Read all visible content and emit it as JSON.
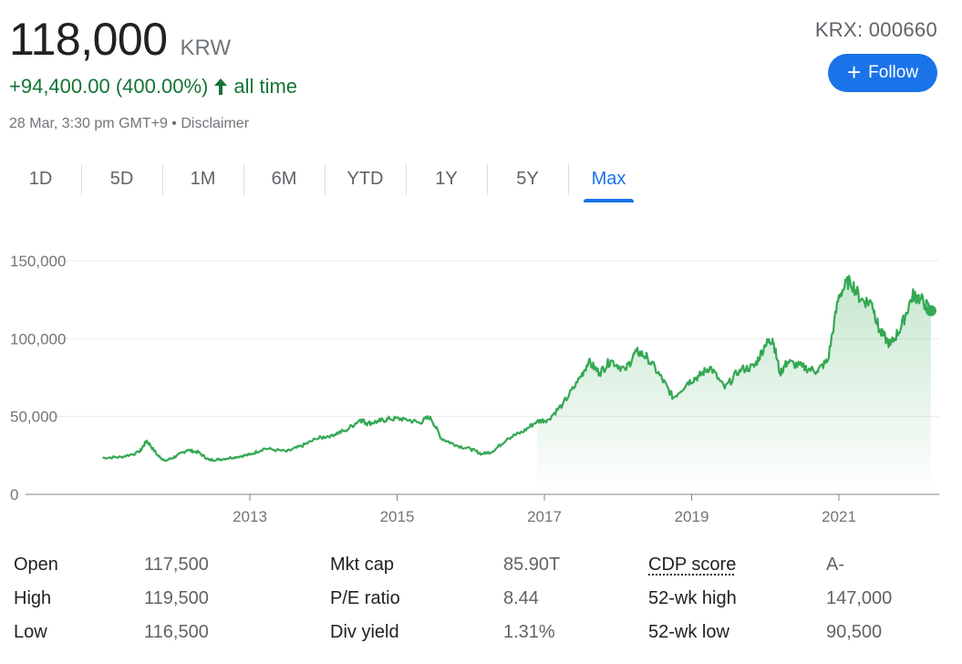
{
  "quote": {
    "price": "118,000",
    "currency": "KRW",
    "change": "+94,400.00 (400.00%)",
    "change_period": "all time",
    "timestamp": "28 Mar, 3:30 pm GMT+9 • Disclaimer",
    "ticker": "KRX: 000660",
    "follow_label": "Follow",
    "colors": {
      "up": "#137333",
      "accent": "#1a73e8",
      "line": "#34a853"
    }
  },
  "tabs": [
    {
      "label": "1D"
    },
    {
      "label": "5D"
    },
    {
      "label": "1M"
    },
    {
      "label": "6M"
    },
    {
      "label": "YTD"
    },
    {
      "label": "1Y"
    },
    {
      "label": "5Y"
    },
    {
      "label": "Max",
      "active": true
    }
  ],
  "chart_data": {
    "type": "area",
    "x_ticks": [
      "2013",
      "2015",
      "2017",
      "2019",
      "2021"
    ],
    "y_ticks": [
      "0",
      "50,000",
      "100,000",
      "150,000"
    ],
    "ylim": [
      0,
      160000
    ],
    "xlim": [
      2011.0,
      2022.3
    ],
    "grid": true,
    "series": [
      {
        "x": [
          2011.0,
          2011.25,
          2011.5,
          2011.6,
          2011.75,
          2011.85,
          2012.0,
          2012.15,
          2012.3,
          2012.45,
          2012.6,
          2012.8,
          2013.0,
          2013.2,
          2013.5,
          2013.7,
          2013.9,
          2014.1,
          2014.3,
          2014.5,
          2014.6,
          2014.75,
          2014.9,
          2015.1,
          2015.3,
          2015.45,
          2015.6,
          2015.8,
          2016.0,
          2016.15,
          2016.3,
          2016.5,
          2016.7,
          2016.9,
          2017.05,
          2017.25,
          2017.45,
          2017.6,
          2017.75,
          2017.9,
          2018.1,
          2018.25,
          2018.4,
          2018.6,
          2018.75,
          2018.95,
          2019.1,
          2019.25,
          2019.45,
          2019.65,
          2019.85,
          2020.0,
          2020.1,
          2020.2,
          2020.3,
          2020.5,
          2020.7,
          2020.85,
          2021.0,
          2021.15,
          2021.3,
          2021.45,
          2021.55,
          2021.7,
          2021.85,
          2022.0,
          2022.1,
          2022.25
        ],
        "y": [
          23500,
          24000,
          27000,
          34500,
          25000,
          21500,
          24500,
          28500,
          27000,
          22000,
          22500,
          24000,
          25500,
          29500,
          27500,
          31000,
          35500,
          38000,
          41000,
          48000,
          45500,
          47000,
          48500,
          48500,
          46000,
          50000,
          36000,
          31500,
          29000,
          26000,
          27500,
          36000,
          40000,
          47000,
          48000,
          58000,
          72000,
          85000,
          78000,
          86000,
          80000,
          92000,
          88000,
          74000,
          62000,
          72000,
          76000,
          82000,
          68000,
          80000,
          82000,
          96000,
          100000,
          78000,
          85000,
          82000,
          79000,
          86000,
          128000,
          138000,
          125000,
          123000,
          105000,
          96000,
          108000,
          128000,
          126000,
          118000
        ]
      }
    ]
  },
  "stats": [
    {
      "label": "Open",
      "value": "117,500",
      "label2": "Mkt cap",
      "value2": "85.90T",
      "label3": "CDP score",
      "value3": "A-"
    },
    {
      "label": "High",
      "value": "119,500",
      "label2": "P/E ratio",
      "value2": "8.44",
      "label3": "52-wk high",
      "value3": "147,000"
    },
    {
      "label": "Low",
      "value": "116,500",
      "label2": "Div yield",
      "value2": "1.31%",
      "label3": "52-wk low",
      "value3": "90,500"
    }
  ]
}
